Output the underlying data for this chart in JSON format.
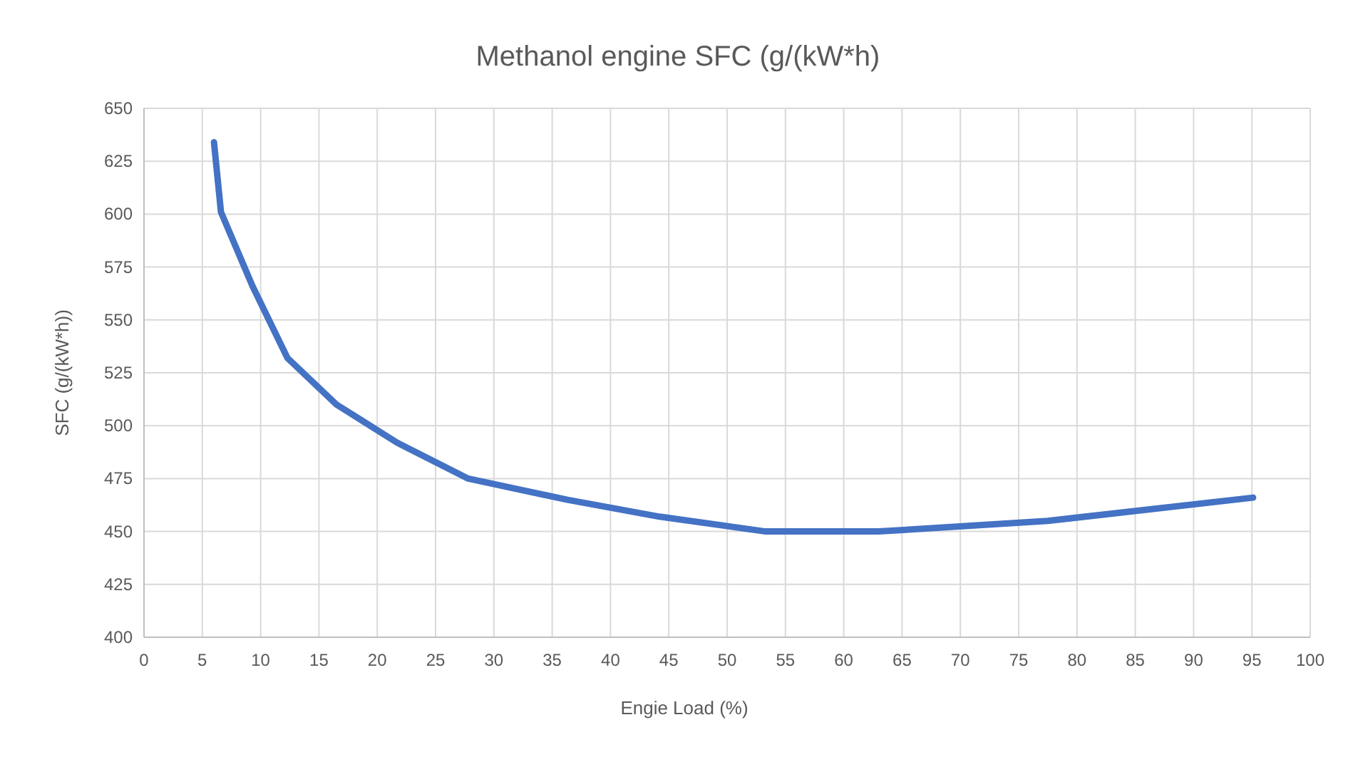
{
  "chart_data": {
    "type": "line",
    "title": "Methanol engine SFC (g/(kW*h)",
    "xlabel": "Engie Load (%)",
    "ylabel": "SFC (g/(kW*h))",
    "x": [
      6,
      6.6,
      9.3,
      12.3,
      16.5,
      21.7,
      27.8,
      36.3,
      44.2,
      53.3,
      63,
      77.5,
      95.1
    ],
    "series": [
      {
        "color": "#4472c4",
        "values": [
          634,
          601,
          566,
          532,
          510,
          492,
          475,
          465,
          457,
          450,
          450,
          455,
          466
        ]
      }
    ],
    "xlim": [
      0,
      100
    ],
    "xticks": [
      0,
      5,
      10,
      15,
      20,
      25,
      30,
      35,
      40,
      45,
      50,
      55,
      60,
      65,
      70,
      75,
      80,
      85,
      90,
      95,
      100
    ],
    "ylim": [
      400,
      650
    ],
    "yticks": [
      400,
      425,
      450,
      475,
      500,
      525,
      550,
      575,
      600,
      625,
      650
    ],
    "grid": true,
    "marker": "none",
    "line_style": "solid"
  }
}
